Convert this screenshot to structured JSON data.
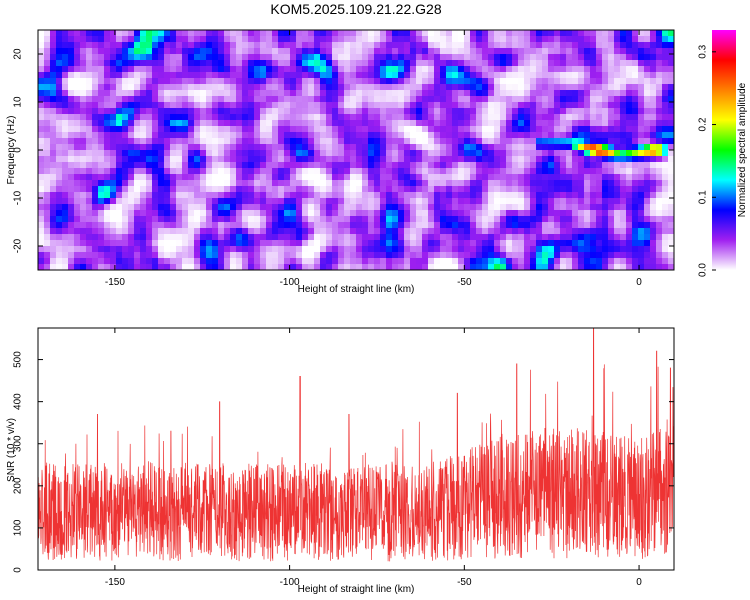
{
  "title": "KOM5.2025.109.21.22.G28",
  "chart_data": [
    {
      "type": "heatmap",
      "xlabel": "Height of straight line (km)",
      "ylabel": "Frequency (Hz)",
      "xlim": [
        -172,
        10
      ],
      "ylim": [
        -25,
        25
      ],
      "xticks": [
        -150,
        -100,
        -50,
        0
      ],
      "yticks": [
        -20,
        -10,
        0,
        10,
        20
      ],
      "colorbar": {
        "label": "Normalized spectral amplitude",
        "range": [
          0,
          0.33
        ],
        "ticks": [
          0.0,
          0.1,
          0.2,
          0.3
        ],
        "colors": [
          "#ffffff",
          "#a020f0",
          "#0000ff",
          "#00ffff",
          "#00ff00",
          "#ffff00",
          "#ff8000",
          "#ff0000",
          "#ff00ff"
        ]
      },
      "background_level": 0.05,
      "ridge": {
        "description_points": [
          {
            "x": -30,
            "y": 1.5,
            "value": 0.1
          },
          {
            "x": -20,
            "y": 1.5,
            "value": 0.12
          },
          {
            "x": -15,
            "y": 0.5,
            "value": 0.25
          },
          {
            "x": -12,
            "y": 0,
            "value": 0.31
          },
          {
            "x": -5,
            "y": -1,
            "value": 0.15
          },
          {
            "x": 0,
            "y": -0.5,
            "value": 0.2
          },
          {
            "x": 5,
            "y": 0,
            "value": 0.28
          },
          {
            "x": 8,
            "y": 0,
            "value": 0.12
          }
        ]
      }
    },
    {
      "type": "line",
      "xlabel": "Height of straight line (km)",
      "ylabel": "SNR (10 * v/v)",
      "xlim": [
        -172,
        10
      ],
      "ylim": [
        0,
        575
      ],
      "xticks": [
        -150,
        -100,
        -50,
        0
      ],
      "yticks": [
        0,
        100,
        200,
        300,
        400,
        500
      ],
      "color": "#ee3333",
      "baseline_mean": [
        [
          -172,
          140
        ],
        [
          -60,
          135
        ],
        [
          -40,
          175
        ],
        [
          -20,
          185
        ],
        [
          0,
          170
        ],
        [
          10,
          200
        ]
      ],
      "notable_peaks": [
        {
          "x": -155,
          "y": 370
        },
        {
          "x": -134,
          "y": 330
        },
        {
          "x": -120,
          "y": 400
        },
        {
          "x": -97,
          "y": 460
        },
        {
          "x": -83,
          "y": 370
        },
        {
          "x": -52,
          "y": 420
        },
        {
          "x": -35,
          "y": 490
        },
        {
          "x": -13,
          "y": 575
        },
        {
          "x": 5,
          "y": 520
        },
        {
          "x": 9,
          "y": 480
        }
      ]
    }
  ]
}
